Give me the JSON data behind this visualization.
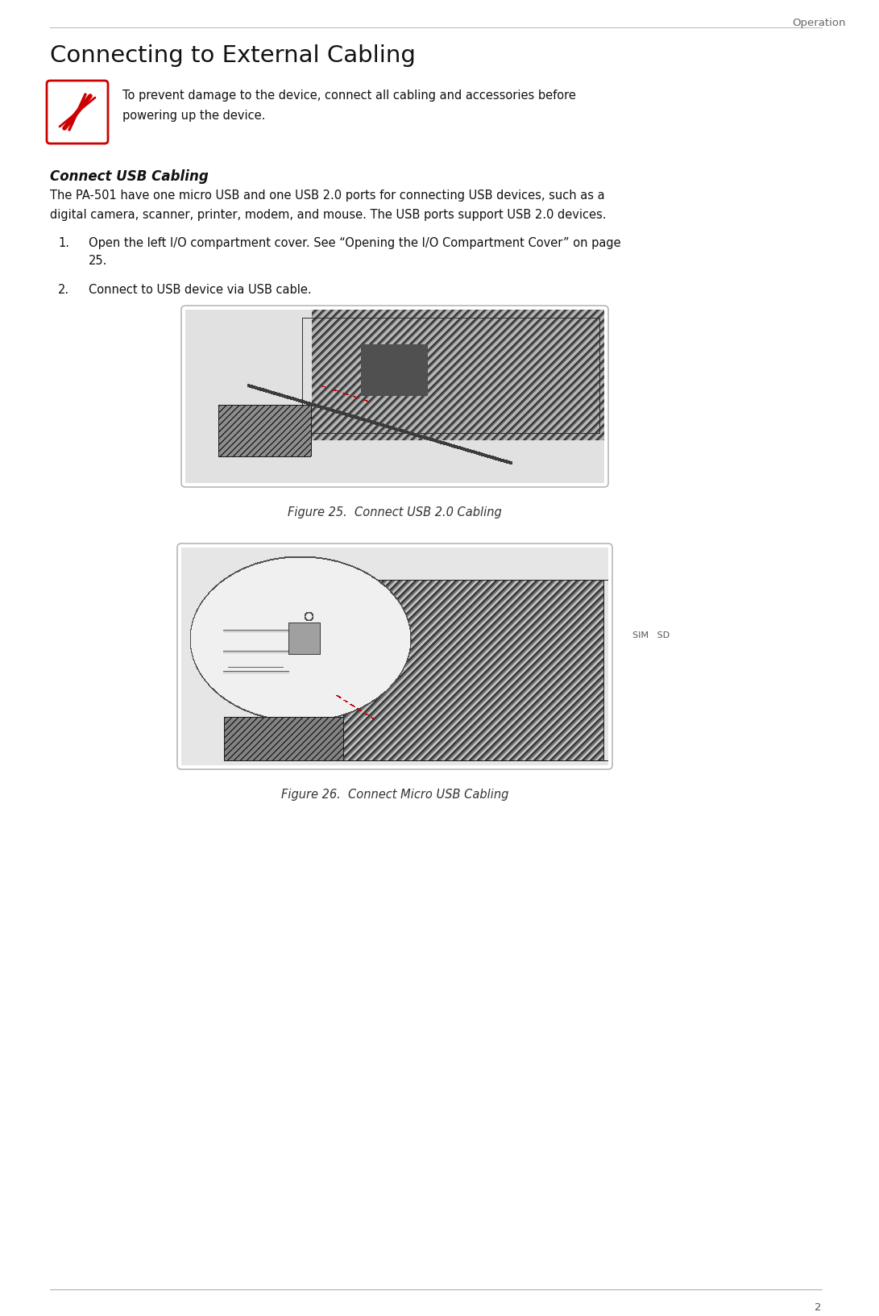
{
  "page_number": "2",
  "header_text": "Operation",
  "title": "Connecting to External Cabling",
  "warning_text": "To prevent damage to the device, connect all cabling and accessories before\npowering up the device.",
  "section_title": "Connect USB Cabling",
  "body_text": "The PA-501 have one micro USB and one USB 2.0 ports for connecting USB devices, such as a\ndigital camera, scanner, printer, modem, and mouse. The USB ports support USB 2.0 devices.",
  "step1_pre": "Open the left I/O compartment cover. See ",
  "step1_italic": "“Opening the I/O Compartment Cover”",
  "step1_post": " on page",
  "step1_cont": "25.",
  "step2": "Connect to USB device via USB cable.",
  "figure25_caption": "Figure 25.  Connect USB 2.0 Cabling",
  "figure26_caption": "Figure 26.  Connect Micro USB Cabling",
  "sim_sd_label": "SIM   SD",
  "bg_color": "#ffffff",
  "text_color": "#000000",
  "header_color": "#666666",
  "warn_red": "#cc0000",
  "fig_border": "#bbbbbb",
  "fig_bg": "#e8e8e8"
}
